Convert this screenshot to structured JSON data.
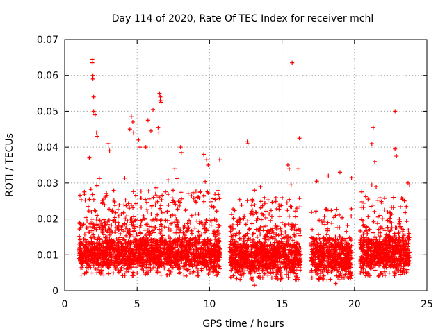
{
  "chart_data": {
    "type": "scatter",
    "title": "Day 114 of 2020, Rate Of TEC Index for receiver mchl",
    "xlabel": "GPS time / hours",
    "ylabel": "ROTI / TECUs",
    "xlim": [
      0,
      25
    ],
    "ylim": [
      0,
      0.07
    ],
    "xticks": [
      0,
      5,
      10,
      15,
      20,
      25
    ],
    "xtick_labels": [
      "0",
      "5",
      "10",
      "15",
      "20",
      "25"
    ],
    "yticks": [
      0,
      0.01,
      0.02,
      0.03,
      0.04,
      0.05,
      0.06,
      0.07
    ],
    "ytick_labels": [
      "0",
      "0.01",
      "0.02",
      "0.03",
      "0.04",
      "0.05",
      "0.06",
      "0.07"
    ],
    "grid": true,
    "marker": "+",
    "color": "#ff0000",
    "series": [
      {
        "name": "ROTI",
        "segments": [
          {
            "x_start": 1.0,
            "x_end": 10.75,
            "typical_range": [
              0.004,
              0.02
            ]
          },
          {
            "x_start": 11.4,
            "x_end": 16.3,
            "typical_range": [
              0.003,
              0.018
            ]
          },
          {
            "x_start": 17.0,
            "x_end": 19.8,
            "typical_range": [
              0.003,
              0.015
            ]
          },
          {
            "x_start": 20.4,
            "x_end": 23.8,
            "typical_range": [
              0.004,
              0.018
            ]
          }
        ],
        "highlights": [
          {
            "x": 1.9,
            "y": 0.0645
          },
          {
            "x": 1.9,
            "y": 0.0635
          },
          {
            "x": 1.95,
            "y": 0.06
          },
          {
            "x": 1.95,
            "y": 0.059
          },
          {
            "x": 2.0,
            "y": 0.054
          },
          {
            "x": 2.0,
            "y": 0.05
          },
          {
            "x": 2.1,
            "y": 0.049
          },
          {
            "x": 2.2,
            "y": 0.044
          },
          {
            "x": 2.25,
            "y": 0.043
          },
          {
            "x": 1.7,
            "y": 0.037
          },
          {
            "x": 3.0,
            "y": 0.041
          },
          {
            "x": 3.1,
            "y": 0.039
          },
          {
            "x": 4.6,
            "y": 0.0485
          },
          {
            "x": 4.7,
            "y": 0.047
          },
          {
            "x": 4.5,
            "y": 0.045
          },
          {
            "x": 4.75,
            "y": 0.044
          },
          {
            "x": 5.1,
            "y": 0.042
          },
          {
            "x": 5.2,
            "y": 0.04
          },
          {
            "x": 5.6,
            "y": 0.04
          },
          {
            "x": 5.75,
            "y": 0.0475
          },
          {
            "x": 5.95,
            "y": 0.0445
          },
          {
            "x": 6.1,
            "y": 0.0505
          },
          {
            "x": 6.55,
            "y": 0.055
          },
          {
            "x": 6.6,
            "y": 0.054
          },
          {
            "x": 6.6,
            "y": 0.053
          },
          {
            "x": 6.65,
            "y": 0.0525
          },
          {
            "x": 6.45,
            "y": 0.0455
          },
          {
            "x": 6.5,
            "y": 0.044
          },
          {
            "x": 7.6,
            "y": 0.034
          },
          {
            "x": 8.0,
            "y": 0.04
          },
          {
            "x": 8.05,
            "y": 0.0385
          },
          {
            "x": 9.6,
            "y": 0.038
          },
          {
            "x": 9.8,
            "y": 0.0365
          },
          {
            "x": 9.9,
            "y": 0.035
          },
          {
            "x": 10.7,
            "y": 0.0365
          },
          {
            "x": 12.6,
            "y": 0.0415
          },
          {
            "x": 12.65,
            "y": 0.041
          },
          {
            "x": 15.7,
            "y": 0.0635
          },
          {
            "x": 15.4,
            "y": 0.035
          },
          {
            "x": 15.5,
            "y": 0.034
          },
          {
            "x": 16.2,
            "y": 0.0425
          },
          {
            "x": 16.1,
            "y": 0.034
          },
          {
            "x": 17.4,
            "y": 0.0305
          },
          {
            "x": 18.2,
            "y": 0.032
          },
          {
            "x": 19.0,
            "y": 0.033
          },
          {
            "x": 19.8,
            "y": 0.0315
          },
          {
            "x": 19.7,
            "y": 0.0045
          },
          {
            "x": 20.5,
            "y": 0.0275
          },
          {
            "x": 21.3,
            "y": 0.0455
          },
          {
            "x": 21.2,
            "y": 0.041
          },
          {
            "x": 21.4,
            "y": 0.036
          },
          {
            "x": 21.2,
            "y": 0.0295
          },
          {
            "x": 21.5,
            "y": 0.029
          },
          {
            "x": 22.8,
            "y": 0.05
          },
          {
            "x": 22.8,
            "y": 0.0395
          },
          {
            "x": 22.9,
            "y": 0.0375
          },
          {
            "x": 22.7,
            "y": 0.026
          },
          {
            "x": 23.3,
            "y": 0.0255
          },
          {
            "x": 23.7,
            "y": 0.03
          },
          {
            "x": 23.8,
            "y": 0.0295
          },
          {
            "x": 13.1,
            "y": 0.0015
          },
          {
            "x": 13.0,
            "y": 0.003
          },
          {
            "x": 14.9,
            "y": 0.003
          },
          {
            "x": 18.7,
            "y": 0.002
          }
        ]
      }
    ]
  }
}
